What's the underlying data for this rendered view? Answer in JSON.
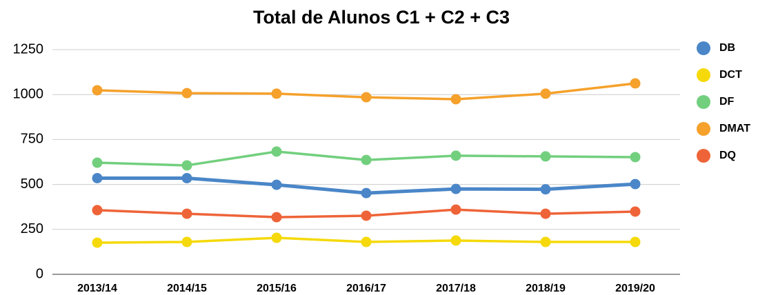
{
  "chart_data": {
    "type": "line",
    "title": "Total de Alunos C1 + C2 + C3",
    "categories": [
      "2013/14",
      "2014/15",
      "2015/16",
      "2016/17",
      "2017/18",
      "2018/19",
      "2019/20"
    ],
    "series": [
      {
        "name": "DB",
        "color": "#4a86c8",
        "values": [
          535,
          535,
          498,
          452,
          475,
          473,
          502
        ]
      },
      {
        "name": "DCT",
        "color": "#f5d90a",
        "values": [
          176,
          180,
          203,
          180,
          188,
          180,
          180
        ]
      },
      {
        "name": "DF",
        "color": "#72cf7e",
        "values": [
          621,
          606,
          683,
          636,
          660,
          656,
          652
        ]
      },
      {
        "name": "DMAT",
        "color": "#f5a12c",
        "values": [
          1024,
          1008,
          1005,
          985,
          974,
          1005,
          1062
        ]
      },
      {
        "name": "DQ",
        "color": "#ee6438",
        "values": [
          357,
          337,
          318,
          326,
          360,
          337,
          349
        ]
      }
    ],
    "ylim": [
      0,
      1250
    ],
    "yticks": [
      0,
      250,
      500,
      750,
      1000,
      1250
    ],
    "grid": true,
    "legend": "right"
  }
}
